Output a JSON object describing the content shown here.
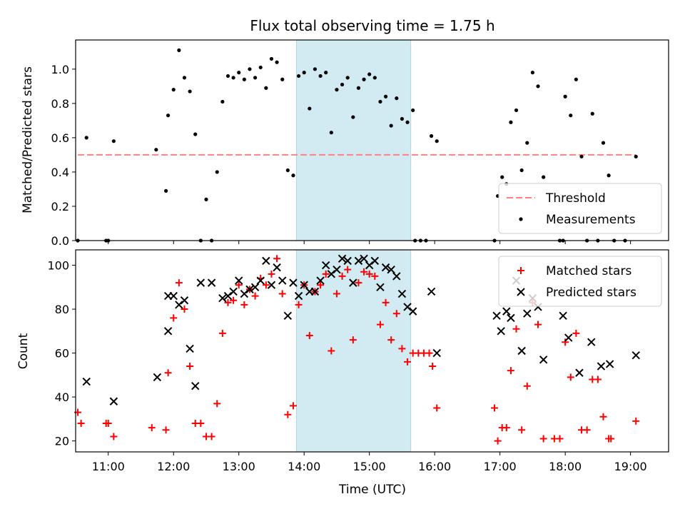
{
  "title": "Flux total observing time = 1.75 h",
  "colors": {
    "threshold": "#ff8080",
    "measurement": "#000000",
    "matched": "#ff0000",
    "predicted": "#000000",
    "span": "#add8e6"
  },
  "chart_data": [
    {
      "type": "scatter",
      "ylabel": "Matched/Predicted stars",
      "xlim": [
        "10:30",
        "19:35"
      ],
      "ylim": [
        0,
        1.17
      ],
      "yticks": [
        0.0,
        0.2,
        0.4,
        0.6,
        0.8,
        1.0
      ],
      "ytick_labels": [
        "0.0",
        "0.2",
        "0.4",
        "0.6",
        "0.8",
        "1.0"
      ],
      "legend_position": "lower-right",
      "highlight_span": [
        "13:53",
        "15:38"
      ],
      "threshold": {
        "name": "Threshold",
        "value": 0.5,
        "x_range": [
          "10:32",
          "19:05"
        ]
      },
      "series": [
        {
          "name": "Measurements",
          "marker": "dot",
          "points": [
            [
              "10:32",
              0.0
            ],
            [
              "10:40",
              0.6
            ],
            [
              "10:58",
              0.0
            ],
            [
              "11:00",
              0.0
            ],
            [
              "11:05",
              0.58
            ],
            [
              "11:44",
              0.53
            ],
            [
              "11:53",
              0.29
            ],
            [
              "11:55",
              0.73
            ],
            [
              "12:00",
              0.88
            ],
            [
              "12:05",
              1.11
            ],
            [
              "12:10",
              0.95
            ],
            [
              "12:15",
              0.87
            ],
            [
              "12:20",
              0.62
            ],
            [
              "12:25",
              0.0
            ],
            [
              "12:30",
              0.24
            ],
            [
              "12:35",
              0.0
            ],
            [
              "12:40",
              0.4
            ],
            [
              "12:45",
              0.81
            ],
            [
              "12:50",
              0.96
            ],
            [
              "12:55",
              0.95
            ],
            [
              "13:00",
              0.98
            ],
            [
              "13:05",
              0.94
            ],
            [
              "13:10",
              1.0
            ],
            [
              "13:15",
              0.95
            ],
            [
              "13:20",
              1.01
            ],
            [
              "13:25",
              0.89
            ],
            [
              "13:30",
              1.06
            ],
            [
              "13:35",
              1.04
            ],
            [
              "13:40",
              0.94
            ],
            [
              "13:45",
              0.41
            ],
            [
              "13:50",
              0.38
            ],
            [
              "13:55",
              0.96
            ],
            [
              "14:00",
              0.98
            ],
            [
              "14:05",
              0.77
            ],
            [
              "14:10",
              1.0
            ],
            [
              "14:15",
              0.96
            ],
            [
              "14:20",
              0.98
            ],
            [
              "14:25",
              0.63
            ],
            [
              "14:30",
              0.88
            ],
            [
              "14:35",
              0.91
            ],
            [
              "14:40",
              0.95
            ],
            [
              "14:45",
              0.72
            ],
            [
              "14:50",
              0.89
            ],
            [
              "14:55",
              0.94
            ],
            [
              "15:00",
              0.97
            ],
            [
              "15:05",
              0.95
            ],
            [
              "15:10",
              0.81
            ],
            [
              "15:15",
              0.84
            ],
            [
              "15:20",
              0.67
            ],
            [
              "15:25",
              0.83
            ],
            [
              "15:30",
              0.71
            ],
            [
              "15:35",
              0.69
            ],
            [
              "15:40",
              0.76
            ],
            [
              "15:42",
              0.0
            ],
            [
              "15:47",
              0.0
            ],
            [
              "15:52",
              0.0
            ],
            [
              "15:57",
              0.61
            ],
            [
              "16:02",
              0.58
            ],
            [
              "16:55",
              0.0
            ],
            [
              "16:58",
              0.26
            ],
            [
              "17:02",
              0.37
            ],
            [
              "17:06",
              0.33
            ],
            [
              "17:10",
              0.69
            ],
            [
              "17:15",
              0.76
            ],
            [
              "17:20",
              0.41
            ],
            [
              "17:25",
              0.57
            ],
            [
              "17:30",
              0.98
            ],
            [
              "17:35",
              0.9
            ],
            [
              "17:40",
              0.37
            ],
            [
              "17:55",
              0.0
            ],
            [
              "17:58",
              0.0
            ],
            [
              "18:00",
              0.84
            ],
            [
              "18:05",
              0.73
            ],
            [
              "18:10",
              0.94
            ],
            [
              "18:15",
              0.49
            ],
            [
              "18:20",
              0.0
            ],
            [
              "18:25",
              0.74
            ],
            [
              "18:30",
              0.0
            ],
            [
              "18:35",
              0.57
            ],
            [
              "18:40",
              0.38
            ],
            [
              "18:45",
              0.0
            ],
            [
              "18:55",
              0.0
            ],
            [
              "19:05",
              0.49
            ]
          ]
        }
      ]
    },
    {
      "type": "scatter",
      "ylabel": "Count",
      "xlabel": "Time (UTC)",
      "xlim": [
        "10:30",
        "19:35"
      ],
      "ylim": [
        15,
        107
      ],
      "yticks": [
        20,
        40,
        60,
        80,
        100
      ],
      "ytick_labels": [
        "20",
        "40",
        "60",
        "80",
        "100"
      ],
      "xticks": [
        "11:00",
        "12:00",
        "13:00",
        "14:00",
        "15:00",
        "16:00",
        "17:00",
        "18:00",
        "19:00"
      ],
      "xtick_labels": [
        "11:00",
        "12:00",
        "13:00",
        "14:00",
        "15:00",
        "16:00",
        "17:00",
        "18:00",
        "19:00"
      ],
      "legend_position": "upper-right",
      "highlight_span": [
        "13:53",
        "15:38"
      ],
      "series": [
        {
          "name": "Matched stars",
          "marker": "plus",
          "points": [
            [
              "10:32",
              33
            ],
            [
              "10:35",
              28
            ],
            [
              "10:58",
              28
            ],
            [
              "11:00",
              28
            ],
            [
              "11:05",
              22
            ],
            [
              "11:40",
              26
            ],
            [
              "11:53",
              25
            ],
            [
              "11:55",
              51
            ],
            [
              "12:00",
              76
            ],
            [
              "12:05",
              92
            ],
            [
              "12:10",
              80
            ],
            [
              "12:15",
              54
            ],
            [
              "12:20",
              28
            ],
            [
              "12:25",
              28
            ],
            [
              "12:30",
              22
            ],
            [
              "12:35",
              22
            ],
            [
              "12:40",
              37
            ],
            [
              "12:45",
              69
            ],
            [
              "12:50",
              83
            ],
            [
              "12:55",
              84
            ],
            [
              "13:00",
              91
            ],
            [
              "13:05",
              82
            ],
            [
              "13:10",
              89
            ],
            [
              "13:15",
              86
            ],
            [
              "13:20",
              94
            ],
            [
              "13:25",
              91
            ],
            [
              "13:30",
              96
            ],
            [
              "13:35",
              103
            ],
            [
              "13:40",
              87
            ],
            [
              "13:45",
              32
            ],
            [
              "13:50",
              36
            ],
            [
              "13:55",
              82
            ],
            [
              "14:00",
              91
            ],
            [
              "14:05",
              68
            ],
            [
              "14:10",
              88
            ],
            [
              "14:15",
              91
            ],
            [
              "14:20",
              96
            ],
            [
              "14:25",
              61
            ],
            [
              "14:30",
              87
            ],
            [
              "14:35",
              95
            ],
            [
              "14:40",
              98
            ],
            [
              "14:45",
              66
            ],
            [
              "14:50",
              92
            ],
            [
              "14:55",
              97
            ],
            [
              "15:00",
              96
            ],
            [
              "15:05",
              95
            ],
            [
              "15:10",
              73
            ],
            [
              "15:15",
              83
            ],
            [
              "15:20",
              66
            ],
            [
              "15:25",
              78
            ],
            [
              "15:30",
              62
            ],
            [
              "15:35",
              56
            ],
            [
              "15:40",
              60
            ],
            [
              "15:45",
              60
            ],
            [
              "15:50",
              60
            ],
            [
              "15:55",
              60
            ],
            [
              "15:58",
              54
            ],
            [
              "16:02",
              35
            ],
            [
              "16:55",
              35
            ],
            [
              "16:58",
              20
            ],
            [
              "17:02",
              26
            ],
            [
              "17:06",
              26
            ],
            [
              "17:10",
              52
            ],
            [
              "17:15",
              71
            ],
            [
              "17:20",
              25
            ],
            [
              "17:25",
              45
            ],
            [
              "17:30",
              83
            ],
            [
              "17:35",
              73
            ],
            [
              "17:40",
              21
            ],
            [
              "17:50",
              21
            ],
            [
              "17:55",
              21
            ],
            [
              "18:00",
              65
            ],
            [
              "18:05",
              49
            ],
            [
              "18:10",
              69
            ],
            [
              "18:15",
              25
            ],
            [
              "18:20",
              25
            ],
            [
              "18:25",
              48
            ],
            [
              "18:30",
              48
            ],
            [
              "18:35",
              31
            ],
            [
              "18:40",
              21
            ],
            [
              "18:42",
              21
            ],
            [
              "19:05",
              29
            ]
          ]
        },
        {
          "name": "Predicted stars",
          "marker": "x",
          "points": [
            [
              "10:40",
              47
            ],
            [
              "11:05",
              38
            ],
            [
              "11:45",
              49
            ],
            [
              "11:55",
              70
            ],
            [
              "11:55",
              86
            ],
            [
              "12:00",
              86
            ],
            [
              "12:05",
              82
            ],
            [
              "12:10",
              84
            ],
            [
              "12:15",
              62
            ],
            [
              "12:20",
              45
            ],
            [
              "12:25",
              92
            ],
            [
              "12:35",
              92
            ],
            [
              "12:45",
              85
            ],
            [
              "12:50",
              86
            ],
            [
              "12:55",
              88
            ],
            [
              "13:00",
              93
            ],
            [
              "13:05",
              87
            ],
            [
              "13:10",
              89
            ],
            [
              "13:15",
              90
            ],
            [
              "13:20",
              93
            ],
            [
              "13:25",
              102
            ],
            [
              "13:30",
              91
            ],
            [
              "13:35",
              99
            ],
            [
              "13:40",
              93
            ],
            [
              "13:45",
              77
            ],
            [
              "13:50",
              92
            ],
            [
              "13:55",
              86
            ],
            [
              "14:00",
              91
            ],
            [
              "14:05",
              88
            ],
            [
              "14:10",
              88
            ],
            [
              "14:15",
              93
            ],
            [
              "14:20",
              100
            ],
            [
              "14:25",
              96
            ],
            [
              "14:30",
              98
            ],
            [
              "14:35",
              103
            ],
            [
              "14:40",
              102
            ],
            [
              "14:45",
              92
            ],
            [
              "14:50",
              102
            ],
            [
              "14:55",
              103
            ],
            [
              "15:00",
              100
            ],
            [
              "15:05",
              102
            ],
            [
              "15:10",
              90
            ],
            [
              "15:15",
              99
            ],
            [
              "15:20",
              98
            ],
            [
              "15:25",
              95
            ],
            [
              "15:30",
              87
            ],
            [
              "15:35",
              81
            ],
            [
              "15:40",
              79
            ],
            [
              "15:57",
              88
            ],
            [
              "16:02",
              60
            ],
            [
              "16:57",
              77
            ],
            [
              "17:01",
              70
            ],
            [
              "17:06",
              79
            ],
            [
              "17:10",
              76
            ],
            [
              "17:15",
              93
            ],
            [
              "17:20",
              61
            ],
            [
              "17:25",
              78
            ],
            [
              "17:30",
              85
            ],
            [
              "17:35",
              81
            ],
            [
              "17:40",
              57
            ],
            [
              "17:58",
              77
            ],
            [
              "18:03",
              67
            ],
            [
              "18:13",
              51
            ],
            [
              "18:24",
              65
            ],
            [
              "18:33",
              54
            ],
            [
              "18:41",
              55
            ],
            [
              "19:05",
              59
            ]
          ]
        }
      ]
    }
  ]
}
